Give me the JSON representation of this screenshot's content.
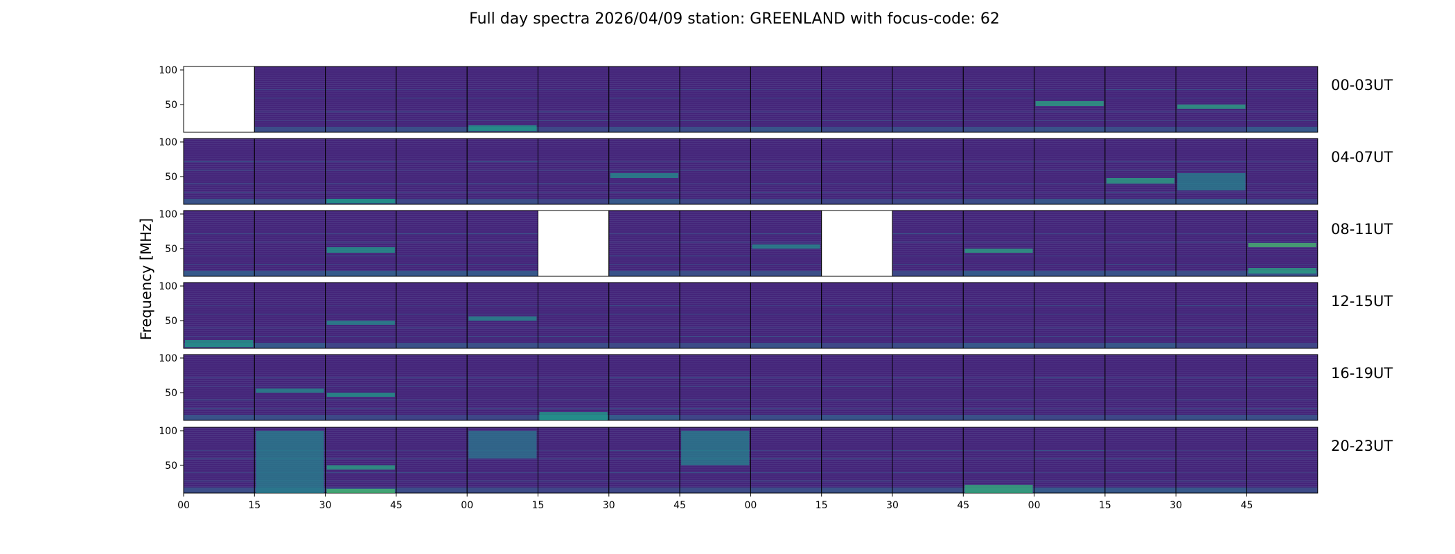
{
  "chart_data": {
    "type": "heatmap",
    "title": "Full day spectra 2026/04/09 station: GREENLAND with focus-code: 62",
    "ylabel": "Frequency [MHz]",
    "ylim": [
      10,
      105
    ],
    "yticks": [
      50,
      100
    ],
    "xticks": [
      "00",
      "15",
      "30",
      "45",
      "00",
      "15",
      "30",
      "45",
      "00",
      "15",
      "30",
      "45",
      "00",
      "15",
      "30",
      "45"
    ],
    "colormap": "viridis",
    "panels_per_row": 16,
    "rows": [
      {
        "label": "00-03UT",
        "missing": [
          0
        ],
        "features": [
          {
            "panel": 0,
            "type": "none"
          },
          {
            "panel": 4,
            "band": [
              12,
              20
            ],
            "intensity": 0.55
          },
          {
            "panel": 12,
            "band": [
              48,
              55
            ],
            "intensity": 0.6
          },
          {
            "panel": 14,
            "band": [
              44,
              50
            ],
            "intensity": 0.6
          }
        ]
      },
      {
        "label": "04-07UT",
        "missing": [],
        "features": [
          {
            "panel": 2,
            "band": [
              12,
              18
            ],
            "intensity": 0.55
          },
          {
            "panel": 6,
            "band": [
              48,
              55
            ],
            "intensity": 0.5
          },
          {
            "panel": 13,
            "band": [
              40,
              48
            ],
            "intensity": 0.6
          },
          {
            "panel": 14,
            "band": [
              30,
              55
            ],
            "intensity": 0.45
          }
        ]
      },
      {
        "label": "08-11UT",
        "missing": [
          5,
          9
        ],
        "features": [
          {
            "panel": 2,
            "band": [
              44,
              52
            ],
            "intensity": 0.55
          },
          {
            "panel": 8,
            "band": [
              50,
              56
            ],
            "intensity": 0.5
          },
          {
            "panel": 11,
            "band": [
              44,
              50
            ],
            "intensity": 0.6
          },
          {
            "panel": 15,
            "band": [
              52,
              58
            ],
            "intensity": 0.7
          },
          {
            "panel": 15,
            "band": [
              14,
              22
            ],
            "intensity": 0.6
          }
        ]
      },
      {
        "label": "12-15UT",
        "missing": [],
        "features": [
          {
            "panel": 0,
            "band": [
              12,
              22
            ],
            "intensity": 0.55
          },
          {
            "panel": 2,
            "band": [
              44,
              50
            ],
            "intensity": 0.5
          },
          {
            "panel": 4,
            "band": [
              50,
              56
            ],
            "intensity": 0.5
          }
        ]
      },
      {
        "label": "16-19UT",
        "missing": [],
        "features": [
          {
            "panel": 1,
            "band": [
              50,
              56
            ],
            "intensity": 0.5
          },
          {
            "panel": 2,
            "band": [
              44,
              50
            ],
            "intensity": 0.55
          },
          {
            "panel": 5,
            "band": [
              10,
              22
            ],
            "intensity": 0.55
          }
        ]
      },
      {
        "label": "20-23UT",
        "missing": [],
        "features": [
          {
            "panel": 1,
            "band": [
              10,
              100
            ],
            "intensity": 0.45
          },
          {
            "panel": 2,
            "band": [
              10,
              16
            ],
            "intensity": 0.7
          },
          {
            "panel": 2,
            "band": [
              44,
              50
            ],
            "intensity": 0.6
          },
          {
            "panel": 4,
            "band": [
              60,
              100
            ],
            "intensity": 0.4
          },
          {
            "panel": 7,
            "band": [
              50,
              100
            ],
            "intensity": 0.45
          },
          {
            "panel": 11,
            "band": [
              10,
              22
            ],
            "intensity": 0.65
          }
        ]
      }
    ]
  }
}
